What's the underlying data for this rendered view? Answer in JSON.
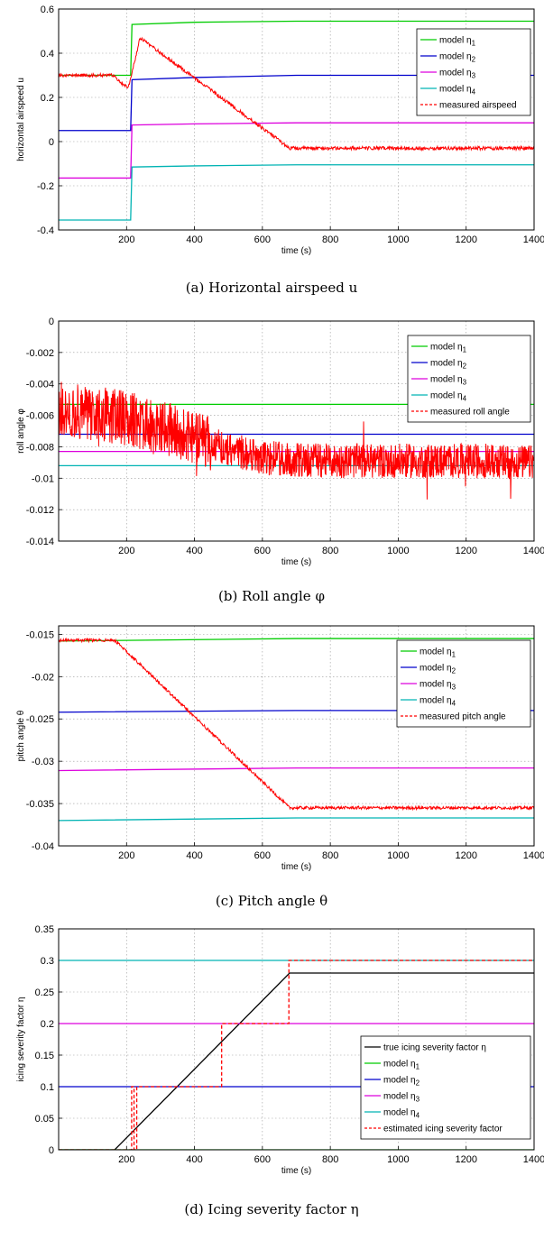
{
  "chart_data": [
    {
      "type": "line",
      "caption": "(a) Horizontal airspeed u",
      "xlabel": "time (s)",
      "ylabel": "horizontal airspeed u",
      "xlim": [
        0,
        1400
      ],
      "ylim": [
        -0.4,
        0.6
      ],
      "xticks": [
        "200",
        "400",
        "600",
        "800",
        "1000",
        "1200",
        "1400"
      ],
      "yticks": [
        "-0.4",
        "-0.2",
        "0",
        "0.2",
        "0.4",
        "0.6"
      ],
      "grid": true,
      "legend_position": "top-right",
      "series": [
        {
          "name": "model η1",
          "color": "#00cc00",
          "style": "solid",
          "x": [
            0,
            212,
            216,
            400,
            700,
            1400
          ],
          "y": [
            0.3,
            0.3,
            0.53,
            0.54,
            0.545,
            0.545
          ]
        },
        {
          "name": "model η2",
          "color": "#0000cc",
          "style": "solid",
          "x": [
            0,
            212,
            216,
            400,
            700,
            1400
          ],
          "y": [
            0.05,
            0.05,
            0.28,
            0.29,
            0.3,
            0.3
          ]
        },
        {
          "name": "model η3",
          "color": "#dd00dd",
          "style": "solid",
          "x": [
            0,
            212,
            216,
            400,
            700,
            1400
          ],
          "y": [
            -0.165,
            -0.165,
            0.075,
            0.08,
            0.085,
            0.085
          ]
        },
        {
          "name": "model η4",
          "color": "#00b3b3",
          "style": "solid",
          "x": [
            0,
            212,
            216,
            400,
            700,
            1400
          ],
          "y": [
            -0.355,
            -0.355,
            -0.115,
            -0.11,
            -0.105,
            -0.105
          ]
        },
        {
          "name": "measured airspeed",
          "color": "#ff0000",
          "style": "dashed",
          "noisy": true,
          "noise": 0.008,
          "x": [
            0,
            160,
            205,
            240,
            680,
            1400
          ],
          "y": [
            0.3,
            0.3,
            0.24,
            0.47,
            -0.03,
            -0.03
          ]
        }
      ]
    },
    {
      "type": "line",
      "caption": "(b) Roll angle φ",
      "xlabel": "time (s)",
      "ylabel": "roll angle φ",
      "xlim": [
        0,
        1400
      ],
      "ylim": [
        -0.014,
        0
      ],
      "xticks": [
        "200",
        "400",
        "600",
        "800",
        "1000",
        "1200",
        "1400"
      ],
      "yticks": [
        "-0.014",
        "-0.012",
        "-0.01",
        "-0.008",
        "-0.006",
        "-0.004",
        "-0.002",
        "0"
      ],
      "grid": true,
      "legend_position": "top-right",
      "series": [
        {
          "name": "model η1",
          "color": "#00cc00",
          "style": "solid",
          "x": [
            0,
            1400
          ],
          "y": [
            -0.0053,
            -0.0053
          ]
        },
        {
          "name": "model η2",
          "color": "#0000cc",
          "style": "solid",
          "x": [
            0,
            1400
          ],
          "y": [
            -0.0072,
            -0.0072
          ]
        },
        {
          "name": "model η3",
          "color": "#dd00dd",
          "style": "solid",
          "x": [
            0,
            1400
          ],
          "y": [
            -0.0083,
            -0.0083
          ]
        },
        {
          "name": "model η4",
          "color": "#00b3b3",
          "style": "solid",
          "x": [
            0,
            1400
          ],
          "y": [
            -0.0092,
            -0.0092
          ]
        },
        {
          "name": "measured roll angle",
          "color": "#ff0000",
          "style": "dashed",
          "noisy": true,
          "noise": 0.0011,
          "x": [
            0,
            200,
            400,
            600,
            800,
            1000,
            1200,
            1400
          ],
          "y": [
            -0.0055,
            -0.0062,
            -0.0075,
            -0.0087,
            -0.0089,
            -0.0089,
            -0.0089,
            -0.009
          ]
        }
      ]
    },
    {
      "type": "line",
      "caption": "(c) Pitch angle θ",
      "xlabel": "time (s)",
      "ylabel": "pitch angle θ",
      "xlim": [
        0,
        1400
      ],
      "ylim": [
        -0.04,
        -0.014
      ],
      "xticks": [
        "200",
        "400",
        "600",
        "800",
        "1000",
        "1200",
        "1400"
      ],
      "yticks": [
        "-0.04",
        "-0.035",
        "-0.03",
        "-0.025",
        "-0.02",
        "-0.015"
      ],
      "grid": true,
      "legend_position": "top-right",
      "series": [
        {
          "name": "model η1",
          "color": "#00cc00",
          "style": "solid",
          "x": [
            0,
            700,
            1400
          ],
          "y": [
            -0.0158,
            -0.0155,
            -0.0155
          ]
        },
        {
          "name": "model η2",
          "color": "#0000cc",
          "style": "solid",
          "x": [
            0,
            700,
            1400
          ],
          "y": [
            -0.0242,
            -0.024,
            -0.024
          ]
        },
        {
          "name": "model η3",
          "color": "#dd00dd",
          "style": "solid",
          "x": [
            0,
            700,
            1400
          ],
          "y": [
            -0.0311,
            -0.0308,
            -0.0308
          ]
        },
        {
          "name": "model η4",
          "color": "#00b3b3",
          "style": "solid",
          "x": [
            0,
            700,
            1400
          ],
          "y": [
            -0.037,
            -0.0367,
            -0.0367
          ]
        },
        {
          "name": "measured pitch angle",
          "color": "#ff0000",
          "style": "dashed",
          "noisy": true,
          "noise": 0.00018,
          "x": [
            0,
            165,
            680,
            1400
          ],
          "y": [
            -0.0157,
            -0.0157,
            -0.0355,
            -0.0355
          ]
        }
      ]
    },
    {
      "type": "line",
      "caption": "(d) Icing severity factor η",
      "xlabel": "time (s)",
      "ylabel": "icing severity factor η",
      "xlim": [
        0,
        1400
      ],
      "ylim": [
        0,
        0.35
      ],
      "xticks": [
        "200",
        "400",
        "600",
        "800",
        "1000",
        "1200",
        "1400"
      ],
      "yticks": [
        "0",
        "0.05",
        "0.1",
        "0.15",
        "0.2",
        "0.25",
        "0.3",
        "0.35"
      ],
      "grid": true,
      "legend_position": "bottom-right",
      "series": [
        {
          "name": "true icing severity factor η",
          "color": "#000000",
          "style": "solid",
          "x": [
            0,
            165,
            680,
            1400
          ],
          "y": [
            0,
            0,
            0.28,
            0.28
          ]
        },
        {
          "name": "model η1",
          "color": "#00cc00",
          "style": "solid",
          "x": [
            0,
            1400
          ],
          "y": [
            0,
            0
          ]
        },
        {
          "name": "model η2",
          "color": "#0000cc",
          "style": "solid",
          "x": [
            0,
            1400
          ],
          "y": [
            0.1,
            0.1
          ]
        },
        {
          "name": "model η3",
          "color": "#dd00dd",
          "style": "solid",
          "x": [
            0,
            1400
          ],
          "y": [
            0.2,
            0.2
          ]
        },
        {
          "name": "model η4",
          "color": "#00b3b3",
          "style": "solid",
          "x": [
            0,
            1400
          ],
          "y": [
            0.3,
            0.3
          ]
        },
        {
          "name": "estimated icing severity factor",
          "color": "#ff0000",
          "style": "dashed",
          "x": [
            0,
            215,
            215,
            222,
            222,
            230,
            230,
            290,
            290,
            480,
            480,
            678,
            678,
            1400
          ],
          "y": [
            0,
            0,
            0.1,
            0.1,
            0,
            0,
            0.1,
            0.1,
            0.1,
            0.1,
            0.2,
            0.2,
            0.3,
            0.3
          ]
        }
      ]
    }
  ]
}
